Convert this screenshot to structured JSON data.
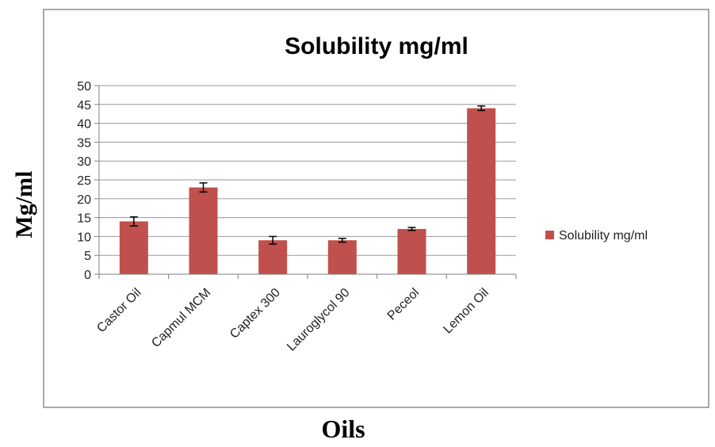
{
  "chart_data": {
    "type": "bar",
    "title": "Solubility mg/ml",
    "xlabel": "Oils",
    "ylabel": "Mg/ml",
    "categories": [
      "Castor Oil",
      "Capmul  MCM",
      "Captex  300",
      "Lauroglycol 90",
      "Peceol",
      "Lemon Oil"
    ],
    "series": [
      {
        "name": "Solubility mg/ml",
        "values": [
          14,
          23,
          9,
          9,
          12,
          44
        ],
        "errors": [
          1.2,
          1.2,
          1.0,
          0.5,
          0.4,
          0.6
        ],
        "color": "#c0504d"
      }
    ],
    "ylim": [
      0,
      50
    ],
    "yticks": [
      0,
      5,
      10,
      15,
      20,
      25,
      30,
      35,
      40,
      45,
      50
    ],
    "grid": true,
    "legend_position": "right"
  }
}
